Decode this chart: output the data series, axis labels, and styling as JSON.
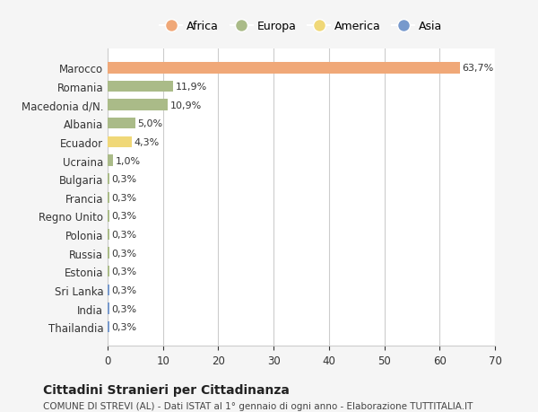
{
  "countries": [
    "Marocco",
    "Romania",
    "Macedonia d/N.",
    "Albania",
    "Ecuador",
    "Ucraina",
    "Bulgaria",
    "Francia",
    "Regno Unito",
    "Polonia",
    "Russia",
    "Estonia",
    "Sri Lanka",
    "India",
    "Thailandia"
  ],
  "values": [
    63.7,
    11.9,
    10.9,
    5.0,
    4.3,
    1.0,
    0.3,
    0.3,
    0.3,
    0.3,
    0.3,
    0.3,
    0.3,
    0.3,
    0.3
  ],
  "labels": [
    "63,7%",
    "11,9%",
    "10,9%",
    "5,0%",
    "4,3%",
    "1,0%",
    "0,3%",
    "0,3%",
    "0,3%",
    "0,3%",
    "0,3%",
    "0,3%",
    "0,3%",
    "0,3%",
    "0,3%"
  ],
  "colors": [
    "#F0A878",
    "#AABB88",
    "#AABB88",
    "#AABB88",
    "#F0D878",
    "#AABB88",
    "#AABB88",
    "#AABB88",
    "#AABB88",
    "#AABB88",
    "#AABB88",
    "#AABB88",
    "#7799CC",
    "#7799CC",
    "#7799CC"
  ],
  "legend_labels": [
    "Africa",
    "Europa",
    "America",
    "Asia"
  ],
  "legend_colors": [
    "#F0A878",
    "#AABB88",
    "#F0D878",
    "#7799CC"
  ],
  "title": "Cittadini Stranieri per Cittadinanza",
  "subtitle": "COMUNE DI STREVI (AL) - Dati ISTAT al 1° gennaio di ogni anno - Elaborazione TUTTITALIA.IT",
  "xlim": [
    0,
    70
  ],
  "xticks": [
    0,
    10,
    20,
    30,
    40,
    50,
    60,
    70
  ],
  "background_color": "#f5f5f5",
  "bar_background": "#ffffff"
}
